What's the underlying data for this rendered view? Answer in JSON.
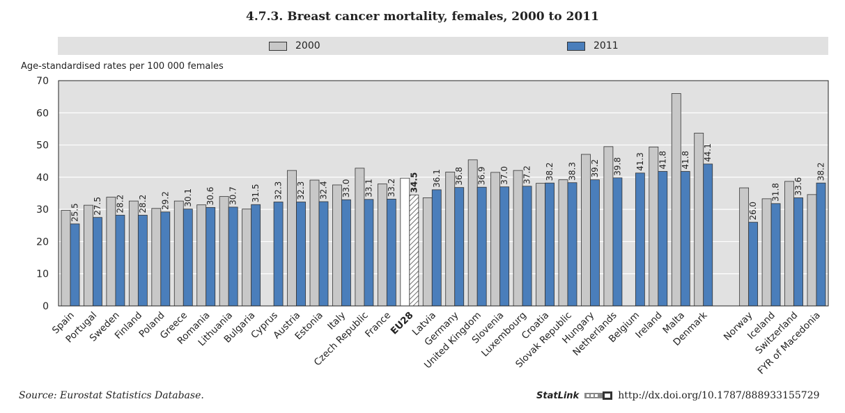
{
  "chart_data": {
    "type": "bar",
    "title": "4.7.3.   Breast cancer mortality, females, 2000 to 2011",
    "ylabel": "Age-standardised rates per 100 000 females",
    "ylim": [
      0,
      70
    ],
    "yticks": [
      0,
      10,
      20,
      30,
      40,
      50,
      60,
      70
    ],
    "categories": [
      "Spain",
      "Portugal",
      "Sweden",
      "Finland",
      "Poland",
      "Greece",
      "Romania",
      "Lithuania",
      "Bulgaria",
      "Cyprus",
      "Austria",
      "Estonia",
      "Italy",
      "Czech Republic",
      "France",
      "EU28",
      "Latvia",
      "Germany",
      "United Kingdom",
      "Slovenia",
      "Luxembourg",
      "Croatia",
      "Slovak Republic",
      "Hungary",
      "Netherlands",
      "Belgium",
      "Ireland",
      "Malta",
      "Denmark",
      "Norway",
      "Iceland",
      "Switzerland",
      "FYR of Macedonia"
    ],
    "highlight_category": "EU28",
    "series": [
      {
        "name": "2000",
        "color": "#c8c8c8",
        "values": [
          29.7,
          31.3,
          33.8,
          32.6,
          30.3,
          32.6,
          31.4,
          34.0,
          30.1,
          null,
          42.1,
          39.1,
          37.6,
          42.8,
          37.9,
          39.7,
          33.6,
          41.6,
          45.4,
          41.5,
          42.1,
          38.1,
          39.2,
          47.1,
          49.5,
          null,
          49.4,
          66.0,
          53.7,
          36.7,
          33.3,
          38.7,
          34.6
        ]
      },
      {
        "name": "2011",
        "color": "#4a7ebb",
        "values": [
          25.5,
          27.5,
          28.2,
          28.2,
          29.2,
          30.1,
          30.6,
          30.7,
          31.5,
          32.3,
          32.3,
          32.4,
          33.0,
          33.1,
          33.2,
          34.5,
          36.1,
          36.8,
          36.9,
          37.0,
          37.2,
          38.2,
          38.3,
          39.2,
          39.8,
          41.3,
          41.8,
          41.8,
          44.1,
          26.0,
          31.8,
          33.6,
          38.2
        ]
      }
    ],
    "legend": [
      "2000",
      "2011"
    ],
    "grid": "horizontal"
  },
  "footer": {
    "source": "Source:  Eurostat Statistics Database.",
    "statlink_label": "StatLink",
    "url": "http://dx.doi.org/10.1787/888933155729"
  }
}
